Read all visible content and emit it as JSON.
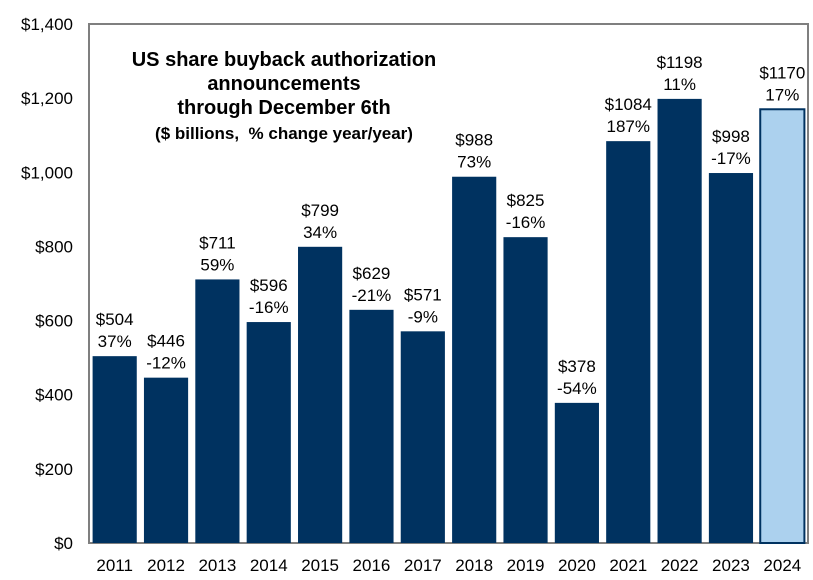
{
  "chart_data": {
    "type": "bar",
    "title_lines": [
      "US share buyback authorization",
      "announcements",
      "through December 6th"
    ],
    "subtitle": "($ billions,  % change year/year)",
    "categories": [
      "2011",
      "2012",
      "2013",
      "2014",
      "2015",
      "2016",
      "2017",
      "2018",
      "2019",
      "2020",
      "2021",
      "2022",
      "2023",
      "2024"
    ],
    "values": [
      504,
      446,
      711,
      596,
      799,
      629,
      571,
      988,
      825,
      378,
      1084,
      1198,
      998,
      1170
    ],
    "value_labels": [
      "$504",
      "$446",
      "$711",
      "$596",
      "$799",
      "$629",
      "$571",
      "$988",
      "$825",
      "$378",
      "$1084",
      "$1198",
      "$998",
      "$1170"
    ],
    "pct_labels": [
      "37%",
      "-12%",
      "59%",
      "-16%",
      "34%",
      "-21%",
      "-9%",
      "73%",
      "-16%",
      "-54%",
      "187%",
      "11%",
      "-17%",
      "17%"
    ],
    "highlight_index": 13,
    "yticks": [
      0,
      200,
      400,
      600,
      800,
      1000,
      1200,
      1400
    ],
    "ytick_labels": [
      "$0",
      "$200",
      "$400",
      "$600",
      "$800",
      "$1,000",
      "$1,200",
      "$1,400"
    ],
    "xlabel": "",
    "ylabel": "",
    "ylim": [
      0,
      1400
    ],
    "grid": false,
    "legend": "none",
    "colors": {
      "bar": "#003260",
      "highlight_bar": "#acd1ee",
      "highlight_border": "#003260",
      "frame": "#7f7f7f"
    }
  }
}
